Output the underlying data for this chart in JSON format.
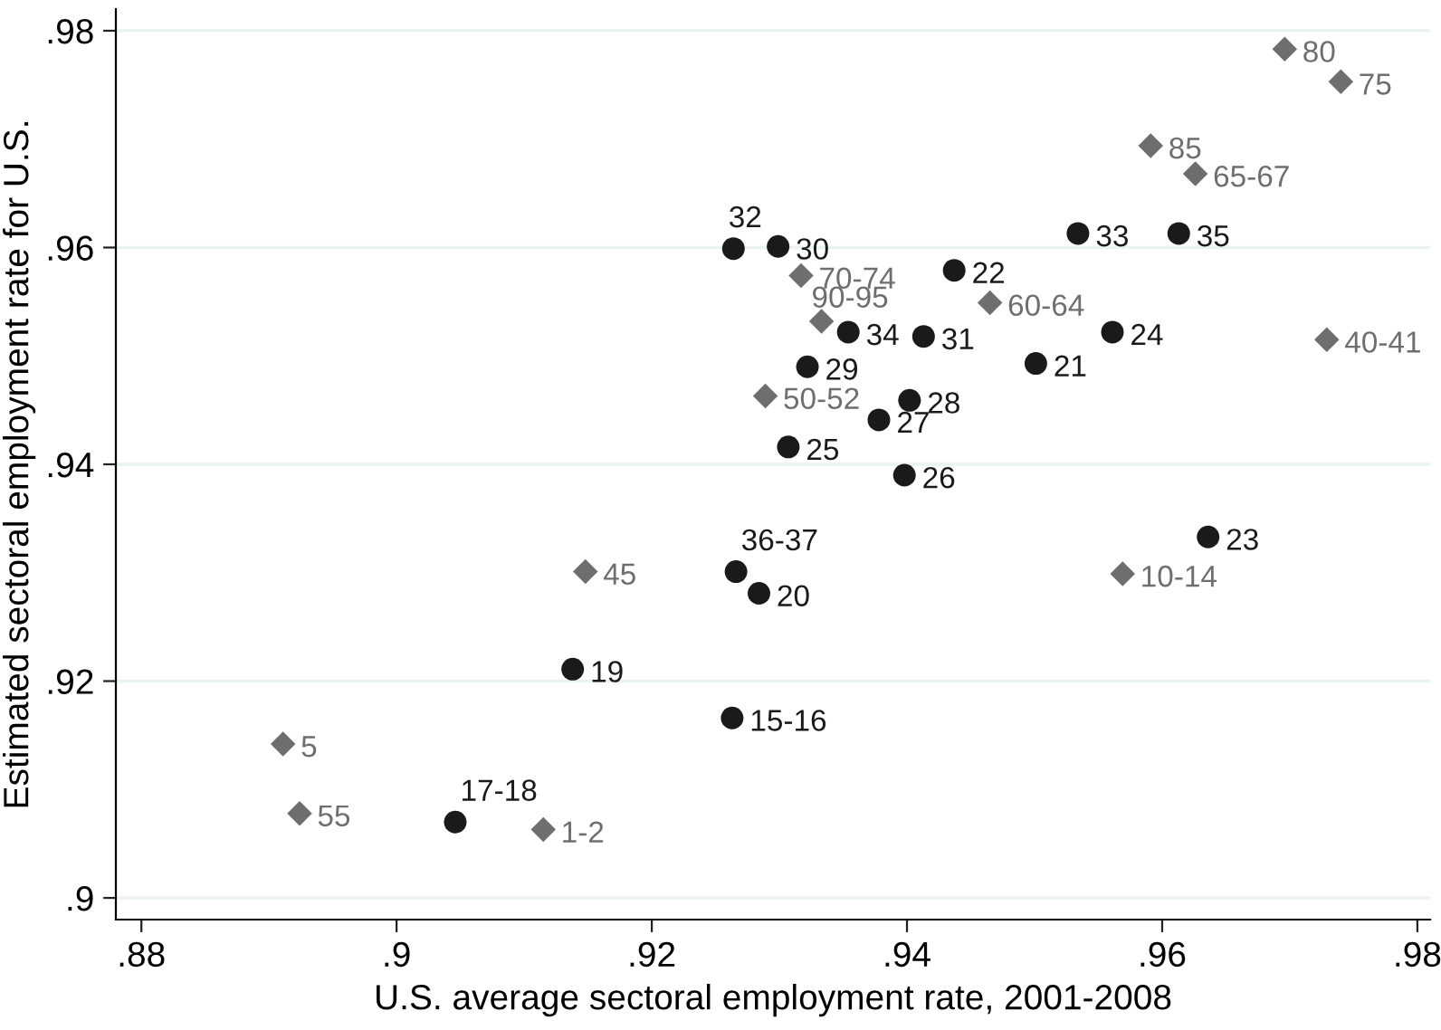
{
  "chart_data": {
    "type": "scatter",
    "xlabel": "U.S. average sectoral employment rate, 2001-2008",
    "ylabel": "Estimated sectoral employment rate for U.S.",
    "xlim": [
      0.878,
      0.981
    ],
    "ylim": [
      0.898,
      0.982
    ],
    "xticks": [
      {
        "value": 0.88,
        "label": ".88"
      },
      {
        "value": 0.9,
        "label": ".9"
      },
      {
        "value": 0.92,
        "label": ".92"
      },
      {
        "value": 0.94,
        "label": ".94"
      },
      {
        "value": 0.96,
        "label": ".96"
      },
      {
        "value": 0.98,
        "label": ".98"
      }
    ],
    "yticks": [
      {
        "value": 0.9,
        "label": ".9"
      },
      {
        "value": 0.92,
        "label": ".92"
      },
      {
        "value": 0.94,
        "label": ".94"
      },
      {
        "value": 0.96,
        "label": ".96"
      },
      {
        "value": 0.98,
        "label": ".98"
      }
    ],
    "grid": "y",
    "legend": false,
    "series": [
      {
        "color": "#1a1a1a",
        "marker": "circle",
        "x": [
          0.9264,
          0.9299,
          0.9437,
          0.9534,
          0.9613,
          0.9354,
          0.9413,
          0.9561,
          0.9501,
          0.9322,
          0.9402,
          0.9378,
          0.9307,
          0.9398,
          0.9636,
          0.9266,
          0.9284,
          0.9138,
          0.9263,
          0.9046
        ],
        "values": [
          0.9599,
          0.9601,
          0.9579,
          0.9613,
          0.9613,
          0.9522,
          0.9518,
          0.9522,
          0.9493,
          0.949,
          0.9459,
          0.9441,
          0.9416,
          0.939,
          0.9333,
          0.9301,
          0.9281,
          0.9211,
          0.9166,
          0.907
        ]
      },
      {
        "color": "#6e6e6e",
        "marker": "diamond",
        "x": [
          0.9696,
          0.974,
          0.9591,
          0.9626,
          0.9317,
          0.9465,
          0.9333,
          0.9729,
          0.9289,
          0.9569,
          0.9148,
          0.8911,
          0.8924,
          0.9115
        ],
        "values": [
          0.9783,
          0.9753,
          0.9694,
          0.9668,
          0.9574,
          0.9549,
          0.9532,
          0.9515,
          0.9463,
          0.9299,
          0.9301,
          0.9142,
          0.9078,
          0.9063
        ]
      }
    ],
    "annotations": [
      {
        "text": "32",
        "x": 0.9264,
        "y": 0.9599
      },
      {
        "text": "30",
        "x": 0.9299,
        "y": 0.9601
      },
      {
        "text": "22",
        "x": 0.9437,
        "y": 0.9579
      },
      {
        "text": "33",
        "x": 0.9534,
        "y": 0.9613
      },
      {
        "text": "35",
        "x": 0.9613,
        "y": 0.9613
      },
      {
        "text": "34",
        "x": 0.9354,
        "y": 0.9522
      },
      {
        "text": "31",
        "x": 0.9413,
        "y": 0.9518
      },
      {
        "text": "24",
        "x": 0.9561,
        "y": 0.9522
      },
      {
        "text": "21",
        "x": 0.9501,
        "y": 0.9493
      },
      {
        "text": "29",
        "x": 0.9322,
        "y": 0.949
      },
      {
        "text": "28",
        "x": 0.9402,
        "y": 0.9459
      },
      {
        "text": "27",
        "x": 0.9378,
        "y": 0.9441
      },
      {
        "text": "25",
        "x": 0.9307,
        "y": 0.9416
      },
      {
        "text": "26",
        "x": 0.9398,
        "y": 0.939
      },
      {
        "text": "23",
        "x": 0.9636,
        "y": 0.9333
      },
      {
        "text": "36-37",
        "x": 0.9266,
        "y": 0.9301
      },
      {
        "text": "20",
        "x": 0.9284,
        "y": 0.9281
      },
      {
        "text": "19",
        "x": 0.9138,
        "y": 0.9211
      },
      {
        "text": "15-16",
        "x": 0.9263,
        "y": 0.9166
      },
      {
        "text": "17-18",
        "x": 0.9046,
        "y": 0.907
      },
      {
        "text": "80",
        "x": 0.9696,
        "y": 0.9783
      },
      {
        "text": "75",
        "x": 0.974,
        "y": 0.9753
      },
      {
        "text": "85",
        "x": 0.9591,
        "y": 0.9694
      },
      {
        "text": "65-67",
        "x": 0.9626,
        "y": 0.9668
      },
      {
        "text": "70-74",
        "x": 0.9317,
        "y": 0.9574
      },
      {
        "text": "60-64",
        "x": 0.9465,
        "y": 0.9549
      },
      {
        "text": "90-95",
        "x": 0.9333,
        "y": 0.9532
      },
      {
        "text": "40-41",
        "x": 0.9729,
        "y": 0.9515
      },
      {
        "text": "50-52",
        "x": 0.9289,
        "y": 0.9463
      },
      {
        "text": "10-14",
        "x": 0.9569,
        "y": 0.9299
      },
      {
        "text": "45",
        "x": 0.9148,
        "y": 0.9301
      },
      {
        "text": "5",
        "x": 0.8911,
        "y": 0.9142
      },
      {
        "text": "55",
        "x": 0.8924,
        "y": 0.9078
      },
      {
        "text": "1-2",
        "x": 0.9115,
        "y": 0.9063
      }
    ]
  }
}
